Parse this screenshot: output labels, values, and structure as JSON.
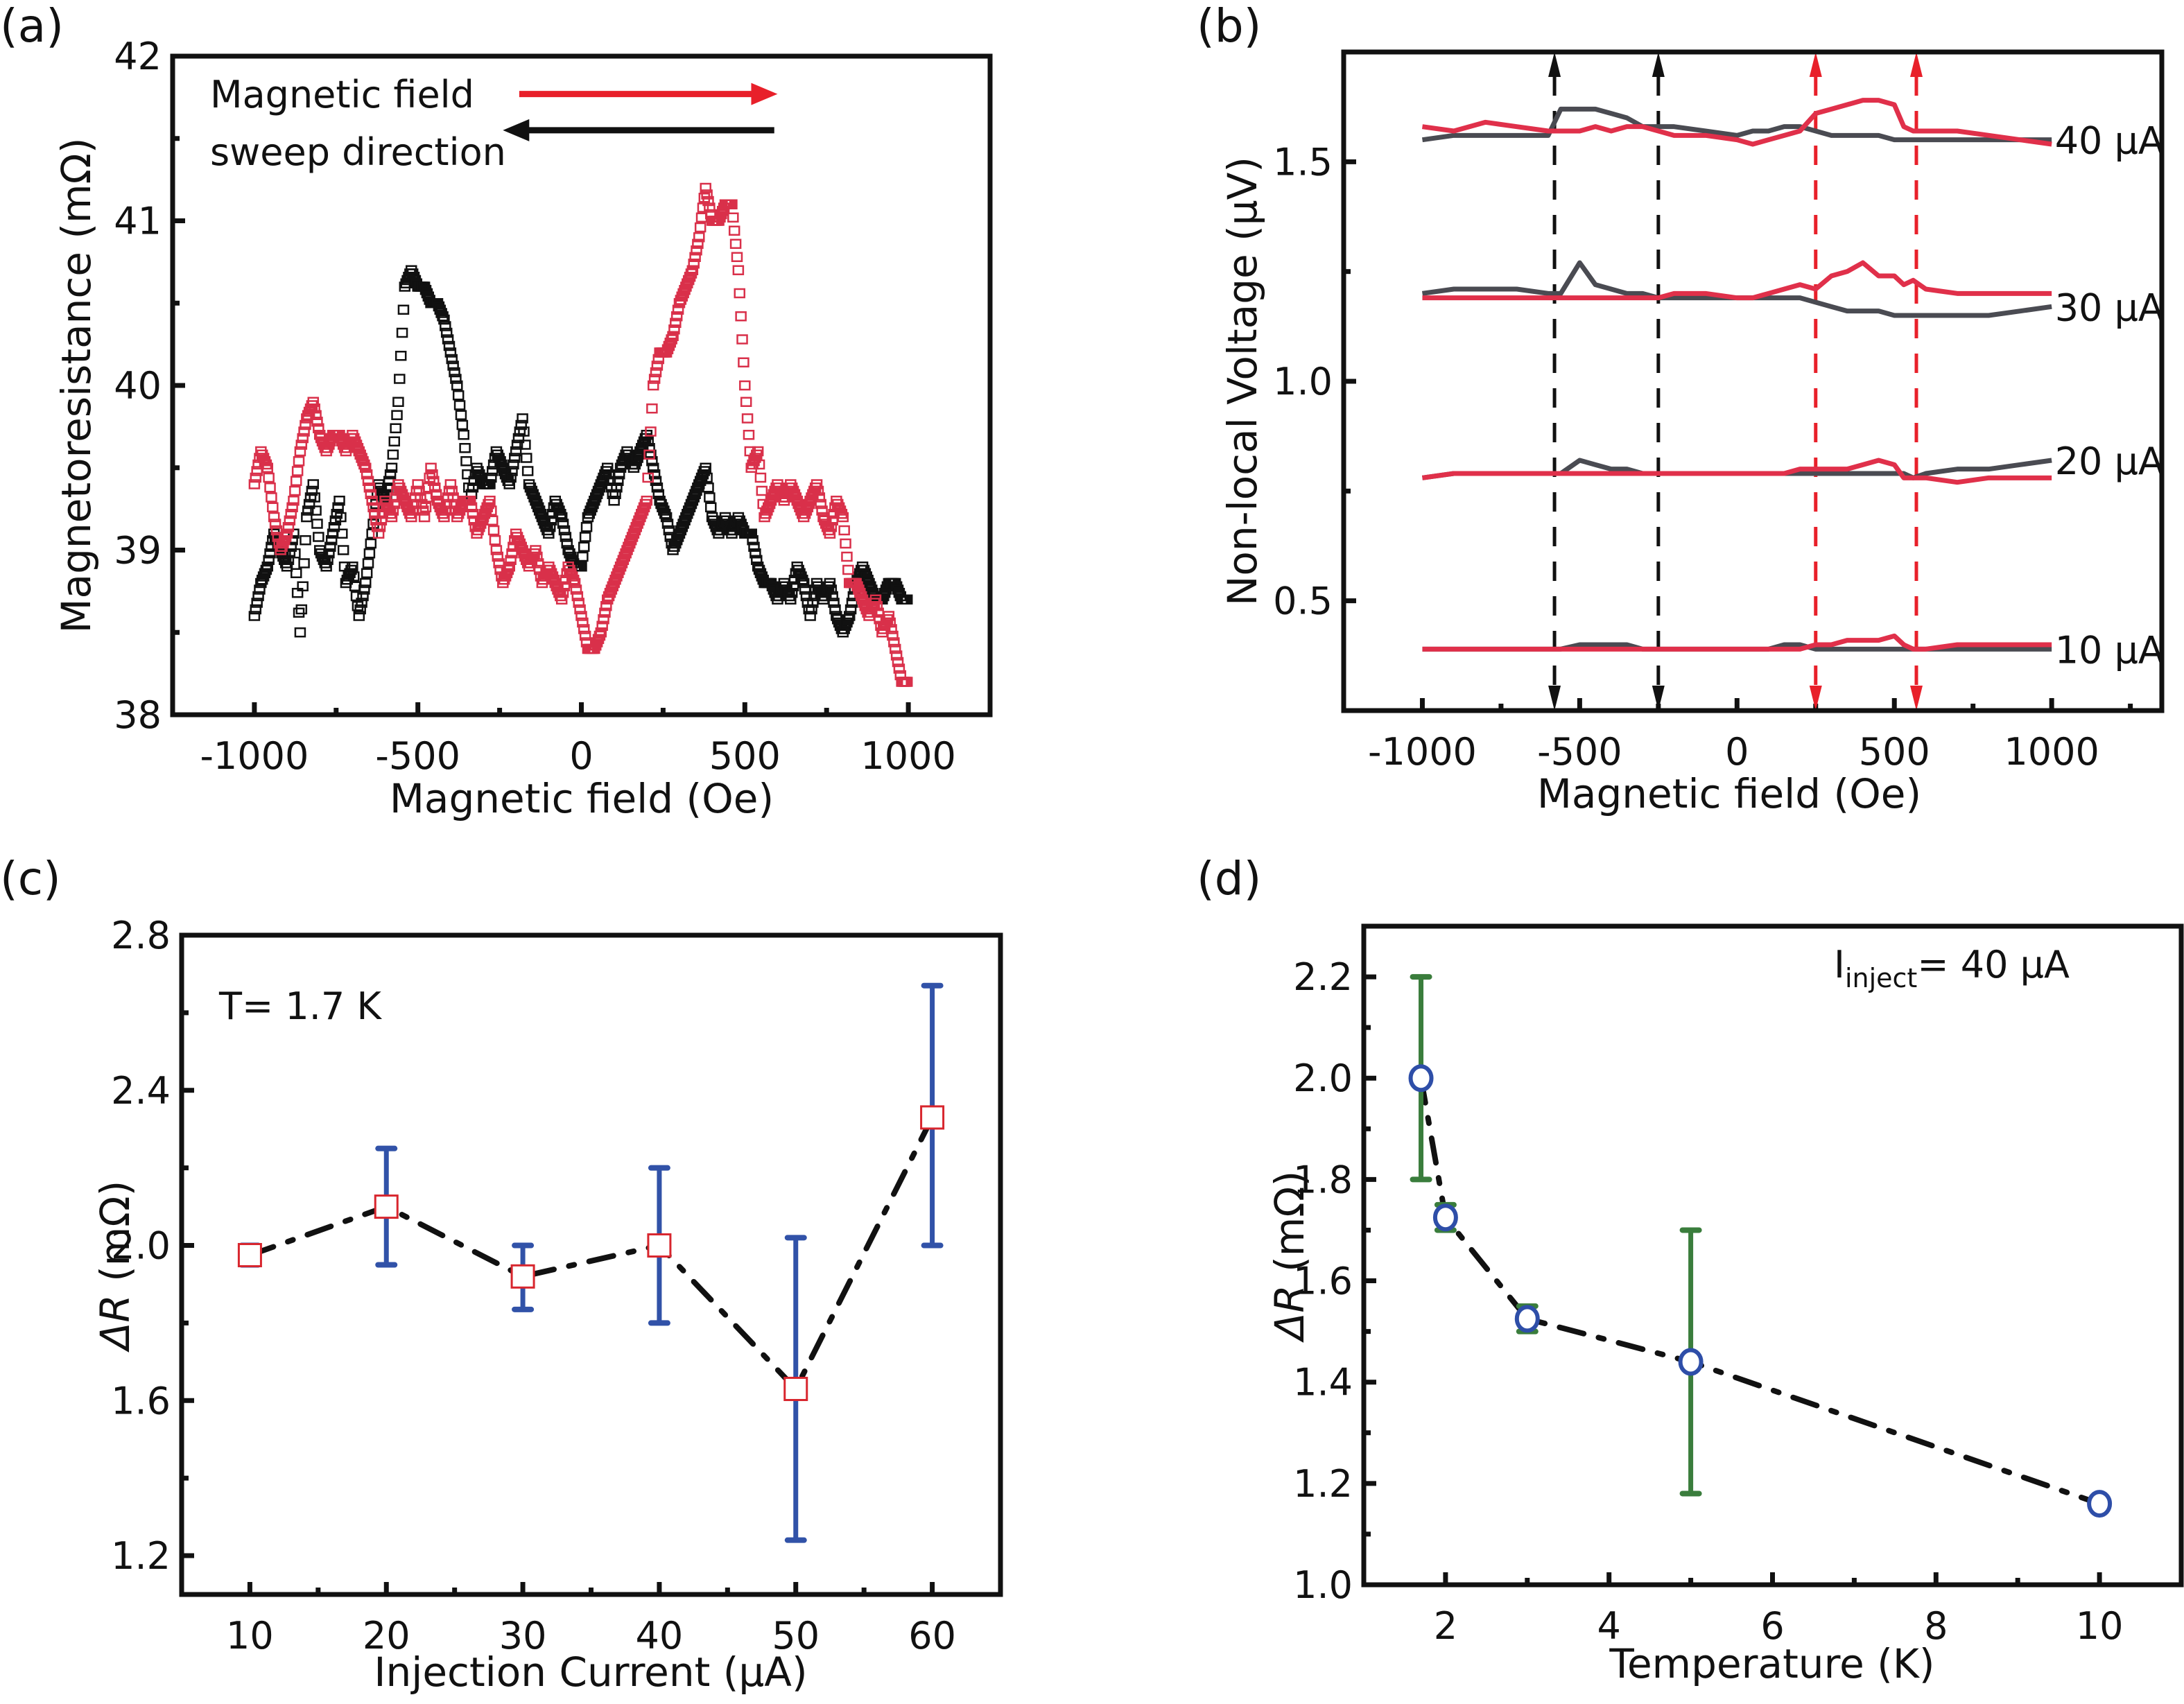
{
  "chart_data": [
    {
      "panel": "(a)",
      "type": "scatter",
      "title": "",
      "xlabel": "Magnetic field (Oe)",
      "ylabel": "Magnetoresistance (mΩ)",
      "xlim": [
        -1250,
        1250
      ],
      "ylim": [
        38,
        42
      ],
      "xticks": [
        -1000,
        -500,
        0,
        500,
        1000
      ],
      "xtick_labels": [
        "-1000",
        "-500",
        "0",
        "500",
        "1000"
      ],
      "yticks": [
        38,
        39,
        40,
        41,
        42
      ],
      "ytick_labels": [
        "38",
        "39",
        "40",
        "41",
        "42"
      ],
      "grid": false,
      "marker": "open-square",
      "annotation": {
        "line1": "Magnetic field",
        "line2": "sweep direction"
      },
      "sweep_arrows": [
        {
          "direction": "right",
          "color": "#e8202a",
          "from": -190,
          "to": 600,
          "y": 41.77
        },
        {
          "direction": "left",
          "color": "#111111",
          "from": 590,
          "to": -240,
          "y": 41.55
        }
      ],
      "series": [
        {
          "name": "sweep down (black)",
          "color": "#111111",
          "x": [
            -1000,
            -980,
            -960,
            -940,
            -920,
            -900,
            -880,
            -860,
            -840,
            -820,
            -800,
            -780,
            -760,
            -740,
            -720,
            -700,
            -680,
            -660,
            -640,
            -620,
            -600,
            -580,
            -560,
            -540,
            -520,
            -500,
            -480,
            -460,
            -440,
            -420,
            -400,
            -380,
            -360,
            -340,
            -320,
            -300,
            -280,
            -260,
            -240,
            -220,
            -200,
            -180,
            -160,
            -140,
            -120,
            -100,
            -80,
            -60,
            -40,
            -20,
            0,
            20,
            40,
            60,
            80,
            100,
            120,
            140,
            160,
            180,
            200,
            220,
            240,
            260,
            280,
            300,
            320,
            340,
            360,
            380,
            400,
            420,
            440,
            460,
            480,
            500,
            520,
            540,
            560,
            580,
            600,
            620,
            640,
            660,
            680,
            700,
            720,
            740,
            760,
            780,
            800,
            820,
            840,
            860,
            880,
            900,
            920,
            940,
            960,
            980,
            1000
          ],
          "y": [
            38.6,
            38.8,
            38.9,
            39.1,
            39.0,
            38.9,
            39.1,
            38.5,
            39.2,
            39.4,
            39.0,
            38.9,
            39.1,
            39.3,
            38.8,
            38.9,
            38.6,
            38.8,
            39.1,
            39.4,
            39.3,
            39.5,
            39.9,
            40.6,
            40.7,
            40.6,
            40.6,
            40.5,
            40.5,
            40.4,
            40.2,
            40.0,
            39.7,
            39.3,
            39.5,
            39.4,
            39.4,
            39.6,
            39.5,
            39.4,
            39.6,
            39.8,
            39.4,
            39.3,
            39.2,
            39.1,
            39.3,
            39.2,
            39.0,
            38.9,
            38.9,
            39.2,
            39.3,
            39.4,
            39.5,
            39.3,
            39.5,
            39.6,
            39.5,
            39.6,
            39.7,
            39.5,
            39.3,
            39.2,
            39.0,
            39.1,
            39.2,
            39.3,
            39.4,
            39.5,
            39.2,
            39.1,
            39.2,
            39.1,
            39.2,
            39.1,
            39.1,
            38.9,
            38.8,
            38.8,
            38.7,
            38.8,
            38.7,
            38.9,
            38.8,
            38.6,
            38.8,
            38.7,
            38.8,
            38.6,
            38.5,
            38.6,
            38.8,
            38.9,
            38.8,
            38.7,
            38.7,
            38.8,
            38.8,
            38.7,
            38.7
          ]
        },
        {
          "name": "sweep up (red)",
          "color": "#d9304a",
          "x": [
            -1000,
            -980,
            -960,
            -940,
            -920,
            -900,
            -880,
            -860,
            -840,
            -820,
            -800,
            -780,
            -760,
            -740,
            -720,
            -700,
            -680,
            -660,
            -640,
            -620,
            -600,
            -580,
            -560,
            -540,
            -520,
            -500,
            -480,
            -460,
            -440,
            -420,
            -400,
            -380,
            -360,
            -340,
            -320,
            -300,
            -280,
            -260,
            -240,
            -220,
            -200,
            -180,
            -160,
            -140,
            -120,
            -100,
            -80,
            -60,
            -40,
            -20,
            0,
            20,
            40,
            60,
            80,
            100,
            120,
            140,
            160,
            180,
            200,
            220,
            240,
            260,
            280,
            300,
            320,
            340,
            360,
            380,
            400,
            420,
            440,
            460,
            480,
            500,
            520,
            540,
            560,
            580,
            600,
            620,
            640,
            660,
            680,
            700,
            720,
            740,
            760,
            780,
            800,
            820,
            840,
            860,
            880,
            900,
            920,
            940,
            960,
            980,
            1000
          ],
          "y": [
            39.4,
            39.6,
            39.5,
            39.2,
            39.0,
            39.1,
            39.3,
            39.6,
            39.8,
            39.9,
            39.7,
            39.6,
            39.7,
            39.7,
            39.6,
            39.7,
            39.6,
            39.5,
            39.3,
            39.1,
            39.3,
            39.2,
            39.4,
            39.3,
            39.2,
            39.4,
            39.2,
            39.5,
            39.3,
            39.2,
            39.4,
            39.2,
            39.3,
            39.3,
            39.1,
            39.2,
            39.3,
            39.0,
            38.8,
            38.9,
            39.1,
            39.0,
            38.9,
            39.0,
            38.8,
            38.9,
            38.8,
            38.7,
            38.9,
            38.8,
            38.6,
            38.4,
            38.4,
            38.5,
            38.7,
            38.8,
            38.9,
            39.0,
            39.1,
            39.2,
            39.3,
            40.0,
            40.2,
            40.2,
            40.3,
            40.5,
            40.6,
            40.7,
            40.9,
            41.2,
            41.0,
            41.0,
            41.1,
            41.1,
            40.7,
            40.0,
            39.5,
            39.6,
            39.2,
            39.3,
            39.4,
            39.3,
            39.4,
            39.3,
            39.2,
            39.3,
            39.4,
            39.2,
            39.1,
            39.3,
            39.2,
            38.8,
            38.8,
            38.7,
            38.6,
            38.7,
            38.5,
            38.6,
            38.4,
            38.2,
            38.2
          ]
        }
      ]
    },
    {
      "panel": "(b)",
      "type": "line",
      "title": "",
      "xlabel": "Magnetic field (Oe)",
      "ylabel": "Non-local Voltage (μV)",
      "xlim": [
        -1250,
        1350
      ],
      "ylim": [
        0.25,
        1.75
      ],
      "xticks": [
        -1000,
        -500,
        0,
        500,
        1000
      ],
      "xtick_labels": [
        "-1000",
        "-500",
        "0",
        "500",
        "1000"
      ],
      "yticks": [
        0.5,
        1.0,
        1.5
      ],
      "ytick_labels": [
        "0.5",
        "1.0",
        "1.5"
      ],
      "grid": false,
      "switching_fields": [
        {
          "x": -580,
          "color": "#111111"
        },
        {
          "x": -250,
          "color": "#111111"
        },
        {
          "x": 250,
          "color": "#e8202a"
        },
        {
          "x": 570,
          "color": "#e8202a"
        }
      ],
      "x": [
        -1000,
        -900,
        -800,
        -700,
        -600,
        -560,
        -500,
        -450,
        -400,
        -350,
        -300,
        -250,
        -200,
        -100,
        0,
        50,
        100,
        150,
        200,
        250,
        300,
        350,
        400,
        450,
        500,
        530,
        560,
        600,
        700,
        800,
        900,
        1000
      ],
      "series": [
        {
          "name": "40 μA down",
          "label": "40 μA",
          "color": "#4a4b52",
          "y": [
            1.55,
            1.56,
            1.56,
            1.56,
            1.56,
            1.62,
            1.62,
            1.62,
            1.61,
            1.6,
            1.58,
            1.58,
            1.58,
            1.57,
            1.56,
            1.57,
            1.57,
            1.58,
            1.58,
            1.57,
            1.56,
            1.56,
            1.56,
            1.56,
            1.55,
            1.55,
            1.55,
            1.55,
            1.55,
            1.55,
            1.55,
            1.55
          ]
        },
        {
          "name": "40 μA up",
          "label": "40 μA",
          "color": "#e0304a",
          "y": [
            1.58,
            1.57,
            1.59,
            1.58,
            1.57,
            1.57,
            1.57,
            1.58,
            1.57,
            1.58,
            1.58,
            1.57,
            1.56,
            1.56,
            1.55,
            1.54,
            1.55,
            1.56,
            1.57,
            1.61,
            1.62,
            1.63,
            1.64,
            1.64,
            1.63,
            1.58,
            1.57,
            1.57,
            1.57,
            1.56,
            1.55,
            1.54
          ]
        },
        {
          "name": "30 μA down",
          "label": "30 μA",
          "color": "#4a4b52",
          "y": [
            1.2,
            1.21,
            1.21,
            1.21,
            1.2,
            1.2,
            1.27,
            1.22,
            1.21,
            1.2,
            1.2,
            1.19,
            1.19,
            1.19,
            1.19,
            1.19,
            1.19,
            1.19,
            1.19,
            1.18,
            1.17,
            1.16,
            1.16,
            1.16,
            1.15,
            1.15,
            1.15,
            1.15,
            1.15,
            1.15,
            1.16,
            1.17
          ]
        },
        {
          "name": "30 μA up",
          "label": "30 μA",
          "color": "#e0304a",
          "y": [
            1.19,
            1.19,
            1.19,
            1.19,
            1.19,
            1.19,
            1.19,
            1.19,
            1.19,
            1.19,
            1.19,
            1.19,
            1.2,
            1.2,
            1.19,
            1.19,
            1.2,
            1.21,
            1.22,
            1.21,
            1.24,
            1.25,
            1.27,
            1.24,
            1.24,
            1.22,
            1.23,
            1.21,
            1.2,
            1.2,
            1.2,
            1.2
          ]
        },
        {
          "name": "20 μA down",
          "label": "20 μA",
          "color": "#4a4b52",
          "y": [
            0.78,
            0.79,
            0.79,
            0.79,
            0.79,
            0.79,
            0.82,
            0.81,
            0.8,
            0.8,
            0.79,
            0.79,
            0.79,
            0.79,
            0.79,
            0.79,
            0.79,
            0.79,
            0.79,
            0.79,
            0.79,
            0.79,
            0.79,
            0.79,
            0.79,
            0.79,
            0.78,
            0.79,
            0.8,
            0.8,
            0.81,
            0.82
          ]
        },
        {
          "name": "20 μA up",
          "label": "20 μA",
          "color": "#e0304a",
          "y": [
            0.78,
            0.79,
            0.79,
            0.79,
            0.79,
            0.79,
            0.79,
            0.79,
            0.79,
            0.79,
            0.79,
            0.79,
            0.79,
            0.79,
            0.79,
            0.79,
            0.79,
            0.79,
            0.8,
            0.8,
            0.8,
            0.8,
            0.81,
            0.82,
            0.81,
            0.78,
            0.78,
            0.78,
            0.77,
            0.78,
            0.78,
            0.78
          ]
        },
        {
          "name": "10 μA down",
          "label": "10 μA",
          "color": "#4a4b52",
          "y": [
            0.39,
            0.39,
            0.39,
            0.39,
            0.39,
            0.39,
            0.4,
            0.4,
            0.4,
            0.4,
            0.39,
            0.39,
            0.39,
            0.39,
            0.39,
            0.39,
            0.39,
            0.4,
            0.4,
            0.39,
            0.39,
            0.39,
            0.39,
            0.39,
            0.39,
            0.39,
            0.39,
            0.39,
            0.39,
            0.39,
            0.39,
            0.39
          ]
        },
        {
          "name": "10 μA up",
          "label": "10 μA",
          "color": "#e0304a",
          "y": [
            0.39,
            0.39,
            0.39,
            0.39,
            0.39,
            0.39,
            0.39,
            0.39,
            0.39,
            0.39,
            0.39,
            0.39,
            0.39,
            0.39,
            0.39,
            0.39,
            0.39,
            0.39,
            0.39,
            0.4,
            0.4,
            0.41,
            0.41,
            0.41,
            0.42,
            0.4,
            0.39,
            0.39,
            0.4,
            0.4,
            0.4,
            0.4
          ]
        }
      ]
    },
    {
      "panel": "(c)",
      "type": "line",
      "title": "",
      "xlabel": "Injection Current (μA)",
      "ylabel_prefix": "ΔR",
      "ylabel_suffix": " (mΩ)",
      "xlim": [
        5,
        65
      ],
      "ylim": [
        1.1,
        2.8
      ],
      "xticks": [
        10,
        20,
        30,
        40,
        50,
        60
      ],
      "xtick_labels": [
        "10",
        "20",
        "30",
        "40",
        "50",
        "60"
      ],
      "yticks": [
        1.2,
        1.6,
        2.0,
        2.4,
        2.8
      ],
      "ytick_labels": [
        "1.2",
        "1.6",
        "2.0",
        "2.4",
        "2.8"
      ],
      "grid": false,
      "annotation": "T= 1.7 K",
      "marker": "open-square",
      "marker_color": "#d8262e",
      "errorbar_color": "#3152a8",
      "line_style": "dash-dot",
      "line_color": "#111111",
      "x": [
        10,
        20,
        30,
        40,
        50,
        60
      ],
      "y": [
        1.975,
        2.1,
        1.92,
        2.0,
        1.63,
        2.33
      ],
      "err_low": [
        1.95,
        1.95,
        1.835,
        1.8,
        1.24,
        2.0
      ],
      "err_high": [
        2.0,
        2.25,
        2.0,
        2.2,
        2.02,
        2.67
      ]
    },
    {
      "panel": "(d)",
      "type": "line",
      "title": "",
      "xlabel": "Temperature (K)",
      "ylabel_prefix": "ΔR",
      "ylabel_suffix": " (mΩ)",
      "xlim": [
        1,
        11
      ],
      "ylim": [
        1.0,
        2.3
      ],
      "xticks": [
        2,
        4,
        6,
        8,
        10
      ],
      "xtick_labels": [
        "2",
        "4",
        "6",
        "8",
        "10"
      ],
      "yticks": [
        1.0,
        1.2,
        1.4,
        1.6,
        1.8,
        2.0,
        2.2
      ],
      "ytick_labels": [
        "1.0",
        "1.2",
        "1.4",
        "1.6",
        "1.8",
        "2.0",
        "2.2"
      ],
      "grid": false,
      "annotation": {
        "main": "I",
        "sub": "inject",
        "rest": "= 40 μA"
      },
      "marker": "open-circle",
      "marker_color": "#2e4ea8",
      "errorbar_color": "#3a7d3c",
      "line_style": "dash-dot",
      "line_color": "#111111",
      "x": [
        1.7,
        2,
        3,
        5,
        10
      ],
      "y": [
        2.0,
        1.725,
        1.525,
        1.44,
        1.16
      ],
      "err_low": [
        1.8,
        1.7,
        1.5,
        1.18,
        1.15
      ],
      "err_high": [
        2.2,
        1.75,
        1.55,
        1.7,
        1.17
      ]
    }
  ]
}
